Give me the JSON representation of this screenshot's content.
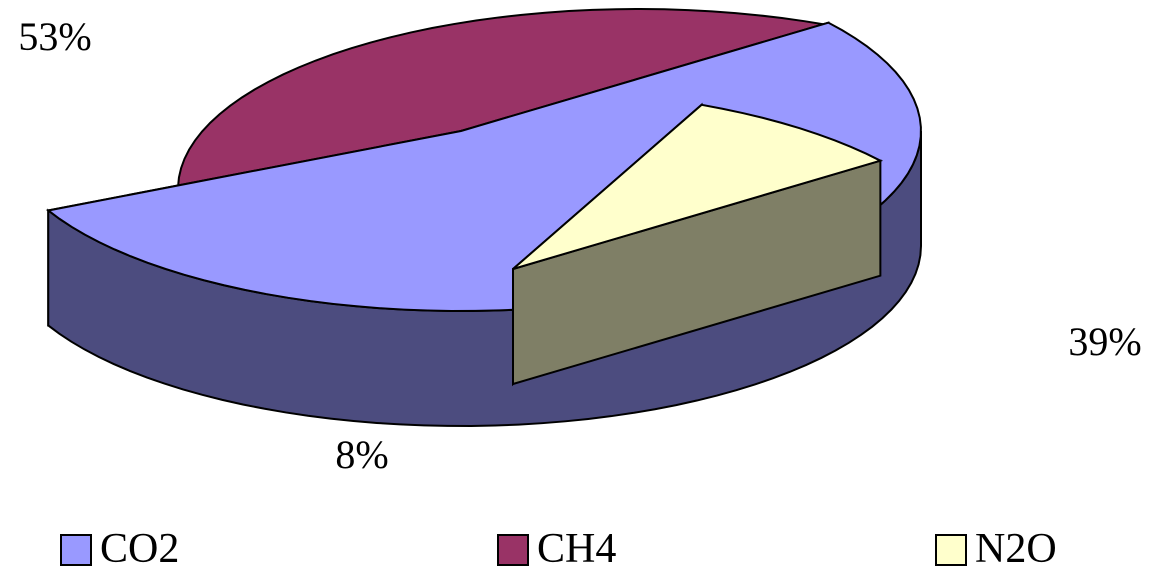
{
  "chart_data": {
    "type": "pie",
    "style": "3d-exploded",
    "title": "",
    "slices": [
      {
        "name": "CO2",
        "value": 53,
        "label": "53%",
        "top_color": "#9999ff",
        "side_color": "#4c4c7f"
      },
      {
        "name": "CH4",
        "value": 39,
        "label": "39%",
        "top_color": "#993366",
        "side_color": "#4c1933"
      },
      {
        "name": "N2O",
        "value": 8,
        "label": "8%",
        "top_color": "#ffffcc",
        "side_color": "#7f7f66"
      }
    ],
    "legend": {
      "placement": "bottom",
      "entries": [
        "CO2",
        "CH4",
        "N2O"
      ]
    }
  }
}
